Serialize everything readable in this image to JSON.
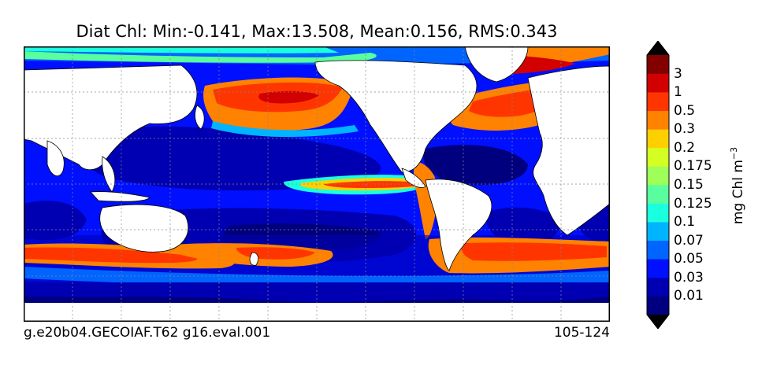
{
  "title": "Diat Chl: Min:-0.141, Max:13.508, Mean:0.156, RMS:0.343",
  "run_label": "g.e20b04.GECOIAF.T62 g16.eval.001",
  "years_label": "105-124",
  "colorbar": {
    "units_main": "mg Chl m",
    "units_exp": "−3",
    "levels": [
      "0.01",
      "0.03",
      "0.05",
      "0.07",
      "0.1",
      "0.125",
      "0.15",
      "0.175",
      "0.2",
      "0.3",
      "0.5",
      "1",
      "3"
    ],
    "colors": [
      "#00007f",
      "#0000b2",
      "#0010ff",
      "#0064ff",
      "#00b4ff",
      "#1affde",
      "#59ff9e",
      "#9eff59",
      "#d4ff22",
      "#ffd000",
      "#ff8200",
      "#ff3500",
      "#d20000",
      "#820000"
    ],
    "extend_low_color": "#000000",
    "extend_high_color": "#000000"
  },
  "map": {
    "projection": "cylindrical, Pacific-centered",
    "gridlines": "dotted grey",
    "land_color": "#ffffff",
    "missing_color": "#ffffff"
  }
}
